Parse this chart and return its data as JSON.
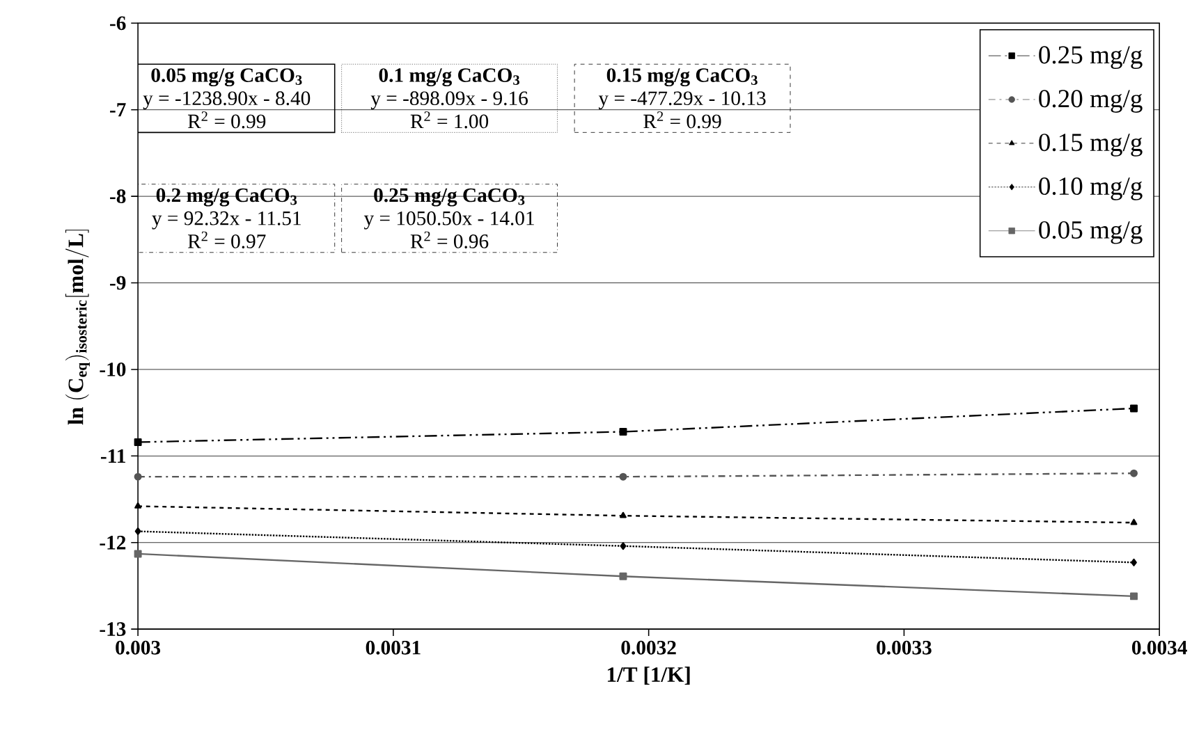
{
  "chart_data": {
    "type": "line",
    "xlabel": "1/T [1/K]",
    "ylabel": "\\mathbf{ln\\ (C_{eq})_{isosteric}[mol/L]}",
    "xlim": [
      0.003,
      0.0034
    ],
    "xticks": [
      0.003,
      0.0031,
      0.0032,
      0.0033,
      0.0034
    ],
    "ylim": [
      -13,
      -6
    ],
    "yticks": [
      -13,
      -12,
      -11,
      -10,
      -9,
      -8,
      -7,
      -6
    ],
    "grid": "y",
    "legend": "top right",
    "series": [
      {
        "name": "0.25 mg/g",
        "color": "#000000",
        "marker": "square",
        "line_style": "dashdotdotted",
        "x": [
          0.003,
          0.00319,
          0.00339
        ],
        "values": [
          -10.84,
          -10.72,
          -10.45
        ]
      },
      {
        "name": "0.20 mg/g",
        "color": "#555555",
        "marker": "circle",
        "line_style": "dashdotted",
        "x": [
          0.003,
          0.00319,
          0.00339
        ],
        "values": [
          -11.24,
          -11.24,
          -11.2
        ]
      },
      {
        "name": "0.15 mg/g",
        "color": "#000000",
        "marker": "triangle",
        "line_style": "dashed",
        "x": [
          0.003,
          0.00319,
          0.00339
        ],
        "values": [
          -11.58,
          -11.69,
          -11.77
        ]
      },
      {
        "name": "0.10 mg/g",
        "color": "#000000",
        "marker": "diamond",
        "line_style": "dotted",
        "x": [
          0.003,
          0.00319,
          0.00339
        ],
        "values": [
          -11.87,
          -12.04,
          -12.23
        ]
      },
      {
        "name": "0.05 mg/g",
        "color": "#666666",
        "marker": "square",
        "line_style": "solid",
        "x": [
          0.003,
          0.00319,
          0.00339
        ],
        "values": [
          -12.13,
          -12.39,
          -12.62
        ]
      }
    ],
    "annotations": [
      "0.05 mg/g CaCO$_{3}$",
      "y = -1238.90x - 8.40",
      "R$^{2}$ = 0.99",
      "0.1 mg/g CaCO$_{3}$",
      "y = -898.09x - 9.16",
      "R$^{2}$ = 1.00",
      "0.15 mg/g CaCO$_{3}$",
      "y = -477.29x - 10.13",
      "R$^{2}$ = 0.99",
      "0.2 mg/g CaCO$_{3}$",
      "y = 92.32x - 11.51",
      "R$^{2}$ = 0.97",
      "0.25 mg/g CaCO$_{3}$",
      "y = 1050.50x - 14.01",
      "R$^{2}$ = 0.96"
    ]
  }
}
